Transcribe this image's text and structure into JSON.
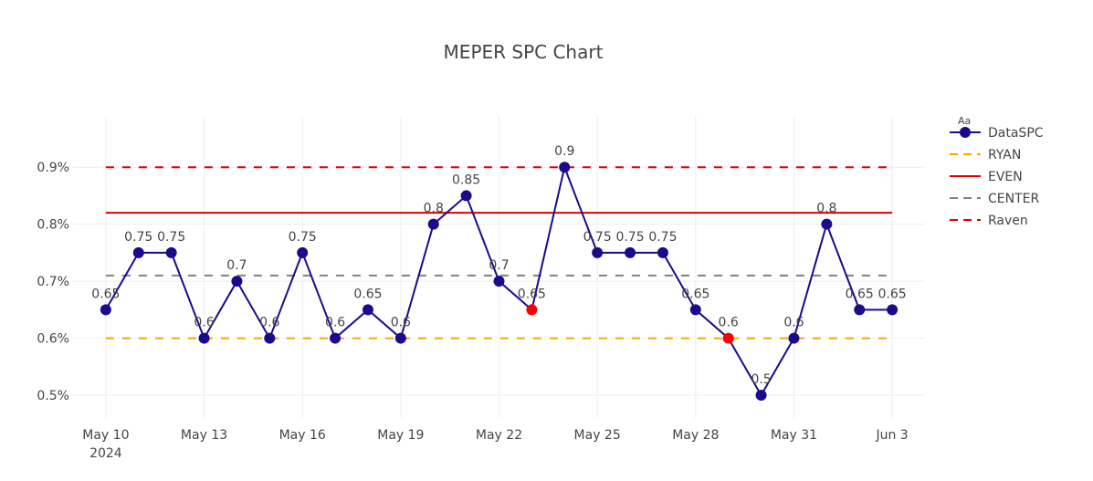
{
  "chart_data": {
    "type": "line",
    "title": "MEPER SPC Chart",
    "x": [
      "2024-05-10",
      "2024-05-11",
      "2024-05-12",
      "2024-05-13",
      "2024-05-14",
      "2024-05-15",
      "2024-05-16",
      "2024-05-17",
      "2024-05-18",
      "2024-05-19",
      "2024-05-20",
      "2024-05-21",
      "2024-05-22",
      "2024-05-23",
      "2024-05-24",
      "2024-05-25",
      "2024-05-26",
      "2024-05-27",
      "2024-05-28",
      "2024-05-29",
      "2024-05-30",
      "2024-05-31",
      "2024-06-01",
      "2024-06-02",
      "2024-06-03"
    ],
    "series": [
      {
        "name": "DataSPC",
        "values": [
          0.65,
          0.75,
          0.75,
          0.6,
          0.7,
          0.6,
          0.75,
          0.6,
          0.65,
          0.6,
          0.8,
          0.85,
          0.7,
          0.65,
          0.9,
          0.75,
          0.75,
          0.75,
          0.65,
          0.6,
          0.5,
          0.6,
          0.8,
          0.65,
          0.65
        ],
        "labels": [
          "0.65",
          "0.75",
          "0.75",
          "0.6",
          "0.7",
          "0.6",
          "0.75",
          "0.6",
          "0.65",
          "0.6",
          "0.8",
          "0.85",
          "0.7",
          "0.65",
          "0.9",
          "0.75",
          "0.75",
          "0.75",
          "0.65",
          "0.6",
          "0.5",
          "0.6",
          "0.8",
          "0.65",
          "0.65"
        ],
        "color": "#1a0a8c",
        "highlight_indices": [
          13,
          19
        ],
        "highlight_color": "#ff0000"
      }
    ],
    "reference_lines": [
      {
        "name": "RYAN",
        "value": 0.6,
        "color": "#ffa500",
        "dash": "dash"
      },
      {
        "name": "EVEN",
        "value": 0.82,
        "color": "#e00000",
        "dash": "solid"
      },
      {
        "name": "CENTER",
        "value": 0.71,
        "color": "#808080",
        "dash": "dash"
      },
      {
        "name": "Raven",
        "value": 0.9,
        "color": "#e00000",
        "dash": "dash"
      }
    ],
    "yticks": [
      0.5,
      0.6,
      0.7,
      0.8,
      0.9
    ],
    "ytick_labels": [
      "0.5%",
      "0.6%",
      "0.7%",
      "0.8%",
      "0.9%"
    ],
    "ylim": [
      0.46,
      0.99
    ],
    "xlim": [
      "2024-05-09",
      "2024-06-04"
    ],
    "xticks": [
      {
        "date": "2024-05-10",
        "label": "May 10",
        "sublabel": "2024"
      },
      {
        "date": "2024-05-13",
        "label": "May 13",
        "sublabel": ""
      },
      {
        "date": "2024-05-16",
        "label": "May 16",
        "sublabel": ""
      },
      {
        "date": "2024-05-19",
        "label": "May 19",
        "sublabel": ""
      },
      {
        "date": "2024-05-22",
        "label": "May 22",
        "sublabel": ""
      },
      {
        "date": "2024-05-25",
        "label": "May 25",
        "sublabel": ""
      },
      {
        "date": "2024-05-28",
        "label": "May 28",
        "sublabel": ""
      },
      {
        "date": "2024-05-31",
        "label": "May 31",
        "sublabel": ""
      },
      {
        "date": "2024-06-03",
        "label": "Jun 3",
        "sublabel": ""
      }
    ],
    "grid": true,
    "legend": {
      "title": "Aa",
      "position": "right",
      "items": [
        "DataSPC",
        "RYAN",
        "EVEN",
        "CENTER",
        "Raven"
      ]
    }
  }
}
